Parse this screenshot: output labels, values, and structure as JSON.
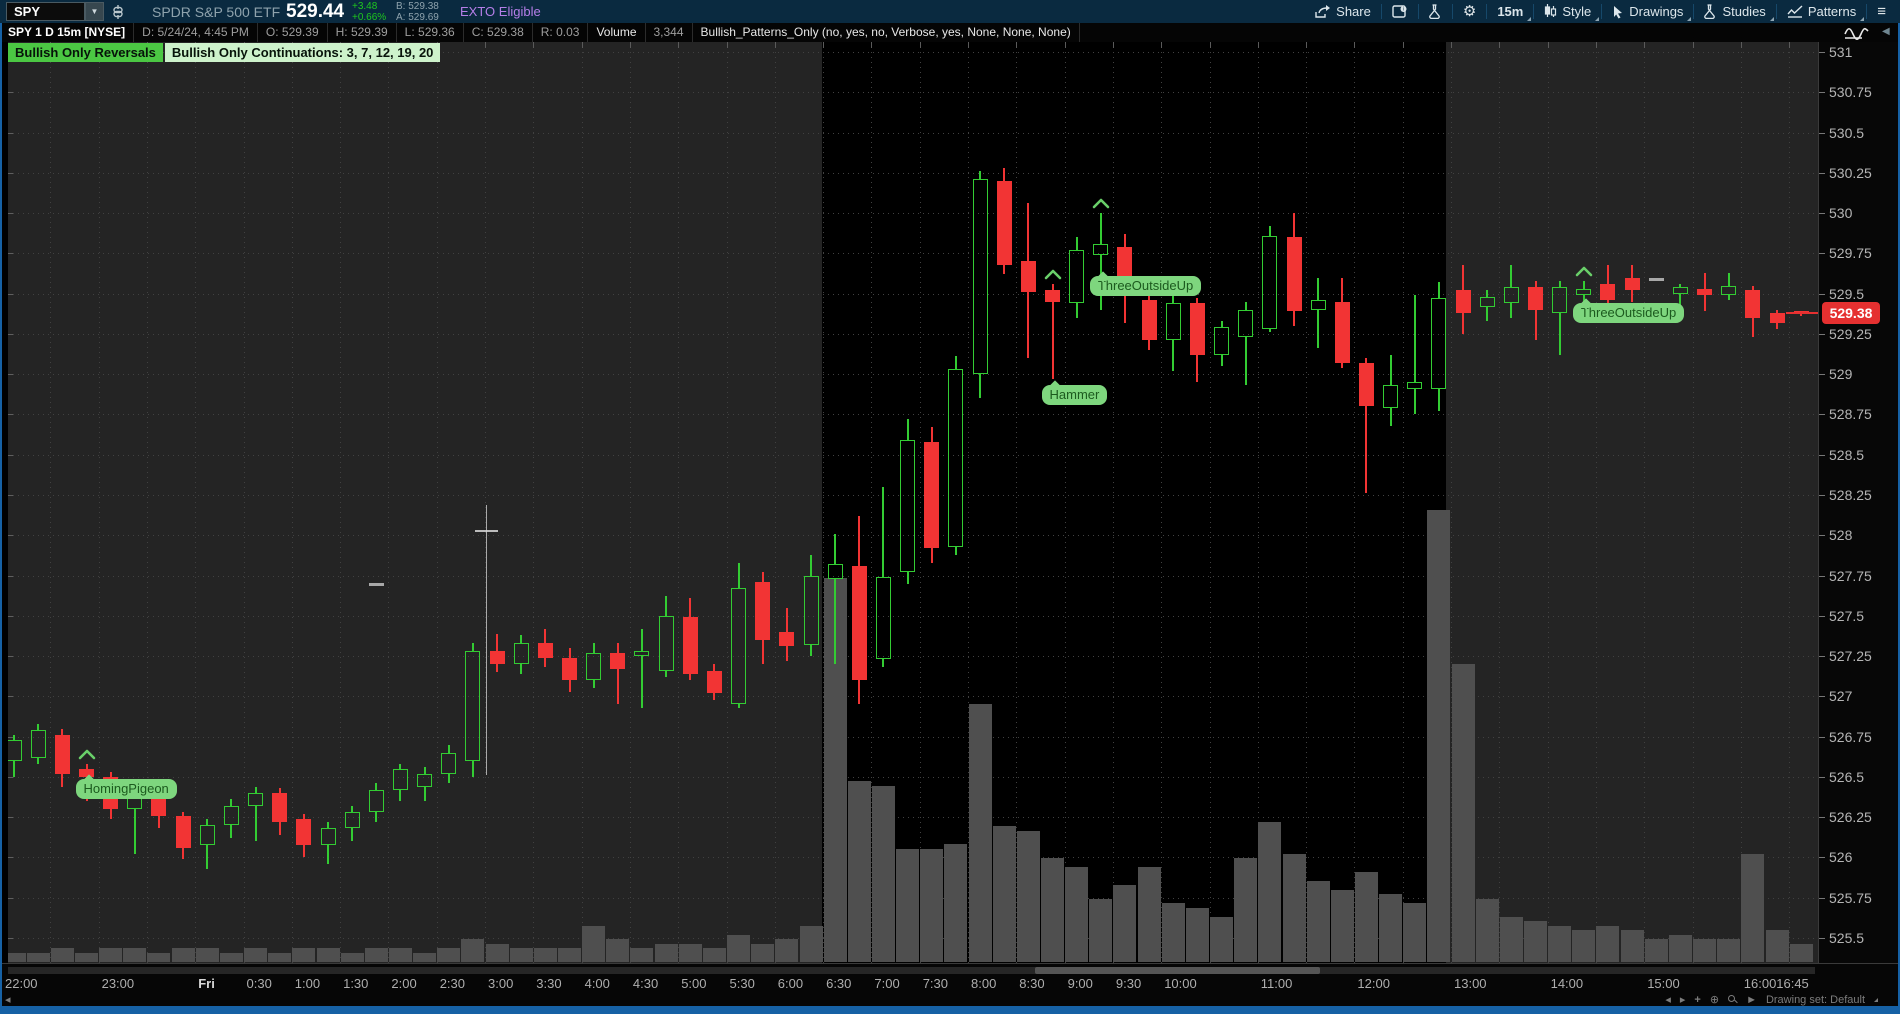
{
  "title_bar": {
    "symbol_input": "SPY",
    "company": "SPDR S&P 500 ETF",
    "last_price": "529.44",
    "change": "+3.48",
    "change_pct": "+0.66%",
    "bid": "B: 529.38",
    "ask": "A: 529.69",
    "exto_badge": "EXTO Eligible",
    "share_label": "Share",
    "interval_label": "15m",
    "style_label": "Style",
    "drawings_label": "Drawings",
    "studies_label": "Studies",
    "patterns_label": "Patterns"
  },
  "info_bar": {
    "segments": [
      "SPY 1 D 15m [NYSE]",
      "D: 5/24/24, 4:45 PM",
      "O: 529.39",
      "H: 529.39",
      "L: 529.36",
      "C: 529.38",
      "R: 0.03",
      "Volume",
      "3,344",
      "Bullish_Patterns_Only (no, yes, no, Verbose, yes, None, None, None)"
    ]
  },
  "overlay_chips": [
    {
      "text": "Bullish Only Reversals",
      "bg": "#4bc743"
    },
    {
      "text": "Bullish Only Continuations: 3, 7, 12, 19, 20",
      "bg": "#cdf2cb"
    }
  ],
  "chart_data": {
    "type": "candlestick",
    "title": "SPY 1 D 15m [NYSE]",
    "interval": "15m",
    "price_axis": {
      "min": 525.5,
      "max": 531,
      "tick": 0.25,
      "labels": [
        "531",
        "530.75",
        "530.5",
        "530.25",
        "530",
        "529.75",
        "529.5",
        "529.25",
        "529",
        "528.75",
        "528.5",
        "528.25",
        "528",
        "527.75",
        "527.5",
        "527.25",
        "527",
        "526.75",
        "526.5",
        "526.25",
        "526",
        "525.75",
        "525.5"
      ],
      "last_price": "529.38"
    },
    "time_axis": {
      "labels": [
        {
          "t": "22:00",
          "s": 0
        },
        {
          "t": "23:00",
          "s": 2
        },
        {
          "t": "Fri",
          "s": 4,
          "b": 1
        },
        {
          "t": "0:30",
          "s": 5
        },
        {
          "t": "1:00",
          "s": 6
        },
        {
          "t": "1:30",
          "s": 7
        },
        {
          "t": "2:00",
          "s": 8
        },
        {
          "t": "2:30",
          "s": 9
        },
        {
          "t": "3:00",
          "s": 10
        },
        {
          "t": "3:30",
          "s": 11
        },
        {
          "t": "4:00",
          "s": 12
        },
        {
          "t": "4:30",
          "s": 13
        },
        {
          "t": "5:00",
          "s": 14
        },
        {
          "t": "5:30",
          "s": 15
        },
        {
          "t": "6:00",
          "s": 16
        },
        {
          "t": "6:30",
          "s": 17
        },
        {
          "t": "7:00",
          "s": 18
        },
        {
          "t": "7:30",
          "s": 19
        },
        {
          "t": "8:00",
          "s": 20
        },
        {
          "t": "8:30",
          "s": 21
        },
        {
          "t": "9:00",
          "s": 22
        },
        {
          "t": "9:30",
          "s": 23
        },
        {
          "t": "10:00",
          "s": 24
        },
        {
          "t": "11:00",
          "s": 26
        },
        {
          "t": "12:00",
          "s": 28
        },
        {
          "t": "13:00",
          "s": 30
        },
        {
          "t": "14:00",
          "s": 32
        },
        {
          "t": "15:00",
          "s": 34
        },
        {
          "t": "16:00",
          "s": 36
        },
        {
          "t": "16:45",
          "s": 37.5,
          "right": 1
        }
      ]
    },
    "session_shading": {
      "start": "6:30",
      "end": "13:00"
    },
    "candles": [
      [
        "22:00",
        526.6,
        526.76,
        526.5,
        526.73,
        2
      ],
      [
        "22:15",
        526.62,
        526.83,
        526.58,
        526.79,
        2
      ],
      [
        "22:30",
        526.76,
        526.8,
        526.44,
        526.52,
        3
      ],
      [
        "22:45",
        526.55,
        526.58,
        526.35,
        526.5,
        2
      ],
      [
        "23:00",
        526.5,
        526.53,
        526.24,
        526.3,
        3
      ],
      [
        "23:15",
        526.3,
        526.42,
        526.02,
        526.38,
        3
      ],
      [
        "23:30",
        526.38,
        526.41,
        526.18,
        526.26,
        2
      ],
      [
        "23:45",
        526.26,
        526.28,
        525.99,
        526.06,
        3
      ],
      [
        "0:00",
        526.08,
        526.24,
        525.93,
        526.2,
        3
      ],
      [
        "0:15",
        526.2,
        526.36,
        526.12,
        526.32,
        2
      ],
      [
        "0:30",
        526.32,
        526.44,
        526.1,
        526.4,
        3
      ],
      [
        "0:45",
        526.4,
        526.43,
        526.14,
        526.22,
        2
      ],
      [
        "1:00",
        526.24,
        526.27,
        526.0,
        526.08,
        3
      ],
      [
        "1:15",
        526.08,
        526.22,
        525.96,
        526.18,
        3
      ],
      [
        "1:30",
        526.18,
        526.32,
        526.1,
        526.28,
        2
      ],
      [
        "1:45",
        526.28,
        526.46,
        526.22,
        526.42,
        3
      ],
      [
        "2:00",
        526.42,
        526.58,
        526.35,
        526.55,
        3
      ],
      [
        "2:15",
        526.44,
        526.56,
        526.35,
        526.52,
        2
      ],
      [
        "2:30",
        526.52,
        526.7,
        526.46,
        526.65,
        3
      ],
      [
        "2:45",
        526.6,
        527.33,
        526.5,
        527.28,
        5
      ],
      [
        "3:00",
        527.28,
        527.39,
        527.15,
        527.2,
        4
      ],
      [
        "3:15",
        527.2,
        527.38,
        527.14,
        527.33,
        3
      ],
      [
        "3:30",
        527.33,
        527.42,
        527.18,
        527.24,
        3
      ],
      [
        "3:45",
        527.24,
        527.3,
        527.03,
        527.1,
        3
      ],
      [
        "4:00",
        527.1,
        527.33,
        527.05,
        527.27,
        8
      ],
      [
        "4:15",
        527.27,
        527.33,
        526.95,
        527.17,
        5
      ],
      [
        "4:30",
        527.25,
        527.42,
        526.93,
        527.28,
        3
      ],
      [
        "4:45",
        527.16,
        527.62,
        527.12,
        527.5,
        4
      ],
      [
        "5:00",
        527.49,
        527.61,
        527.1,
        527.14,
        4
      ],
      [
        "5:15",
        527.16,
        527.2,
        526.98,
        527.02,
        3
      ],
      [
        "5:30",
        526.95,
        527.83,
        526.93,
        527.67,
        6
      ],
      [
        "5:45",
        527.71,
        527.77,
        527.2,
        527.35,
        4
      ],
      [
        "6:00",
        527.4,
        527.55,
        527.22,
        527.31,
        5
      ],
      [
        "6:15",
        527.32,
        527.88,
        527.25,
        527.75,
        8
      ],
      [
        "6:30",
        527.73,
        528.01,
        527.2,
        527.82,
        85
      ],
      [
        "6:45",
        527.81,
        528.12,
        526.95,
        527.1,
        40
      ],
      [
        "7:00",
        527.23,
        528.3,
        527.18,
        527.74,
        39
      ],
      [
        "7:15",
        527.77,
        528.72,
        527.7,
        528.59,
        25
      ],
      [
        "7:30",
        528.58,
        528.67,
        527.83,
        527.92,
        25
      ],
      [
        "7:45",
        527.93,
        529.11,
        527.88,
        529.03,
        26
      ],
      [
        "8:00",
        529.0,
        530.26,
        528.85,
        530.21,
        57
      ],
      [
        "8:15",
        530.2,
        530.28,
        529.62,
        529.68,
        30
      ],
      [
        "8:30",
        529.7,
        530.06,
        529.1,
        529.51,
        29
      ],
      [
        "8:45",
        529.52,
        529.56,
        528.97,
        529.45,
        23
      ],
      [
        "9:00",
        529.44,
        529.85,
        529.35,
        529.77,
        21
      ],
      [
        "9:15",
        529.74,
        530.0,
        529.4,
        529.81,
        14
      ],
      [
        "9:30",
        529.79,
        529.87,
        529.32,
        529.5,
        17
      ],
      [
        "9:45",
        529.46,
        529.5,
        529.15,
        529.21,
        21
      ],
      [
        "10:00",
        529.21,
        529.5,
        529.02,
        529.44,
        13
      ],
      [
        "10:15",
        529.44,
        529.47,
        528.95,
        529.12,
        12
      ],
      [
        "10:30",
        529.12,
        529.33,
        529.05,
        529.29,
        10
      ],
      [
        "10:45",
        529.23,
        529.45,
        528.93,
        529.4,
        23
      ],
      [
        "11:00",
        529.28,
        529.92,
        529.26,
        529.86,
        31
      ],
      [
        "11:15",
        529.85,
        530.0,
        529.3,
        529.39,
        24
      ],
      [
        "11:30",
        529.4,
        529.6,
        529.16,
        529.46,
        18
      ],
      [
        "11:45",
        529.45,
        529.6,
        529.04,
        529.07,
        16
      ],
      [
        "12:00",
        529.07,
        529.1,
        528.26,
        528.8,
        20
      ],
      [
        "12:15",
        528.79,
        529.12,
        528.68,
        528.93,
        15
      ],
      [
        "12:30",
        528.91,
        529.49,
        528.75,
        528.95,
        13
      ],
      [
        "12:45",
        528.91,
        529.57,
        528.77,
        529.47,
        100
      ],
      [
        "13:00",
        529.52,
        529.68,
        529.25,
        529.38,
        66
      ],
      [
        "13:15",
        529.42,
        529.52,
        529.33,
        529.48,
        14
      ],
      [
        "13:30",
        529.44,
        529.68,
        529.35,
        529.54,
        10
      ],
      [
        "13:45",
        529.54,
        529.58,
        529.21,
        529.4,
        9
      ],
      [
        "14:00",
        529.38,
        529.58,
        529.12,
        529.54,
        8
      ],
      [
        "14:15",
        529.49,
        529.58,
        529.45,
        529.53,
        7
      ],
      [
        "14:30",
        529.56,
        529.68,
        529.39,
        529.46,
        8
      ],
      [
        "14:45",
        529.6,
        529.68,
        529.45,
        529.52,
        7
      ],
      [
        "15:00",
        null,
        null,
        null,
        null,
        5
      ],
      [
        "15:15",
        529.5,
        529.56,
        529.42,
        529.54,
        6
      ],
      [
        "15:30",
        529.53,
        529.63,
        529.39,
        529.49,
        5
      ],
      [
        "15:45",
        529.49,
        529.63,
        529.46,
        529.55,
        5
      ],
      [
        "16:00",
        529.52,
        529.55,
        529.23,
        529.35,
        24
      ],
      [
        "16:15",
        529.38,
        529.4,
        529.28,
        529.32,
        7
      ],
      [
        "16:30",
        529.39,
        529.39,
        529.36,
        529.38,
        4
      ]
    ],
    "patterns": [
      {
        "name": "HomingPigeon",
        "time": "22:45",
        "label_price": 526.49
      },
      {
        "name": "Hammer",
        "time": "8:45",
        "label_price": 528.93
      },
      {
        "name": "ThreeOutsideUp",
        "time": "9:15",
        "label_price": 529.61
      },
      {
        "name": "ThreeOutsideUp",
        "time": "14:15",
        "label_price": 529.44
      }
    ],
    "gray_dashes": [
      {
        "time": "1:45",
        "price": 527.7
      },
      {
        "time": "15:00",
        "price": 529.59
      }
    ],
    "crosshair": {
      "time": "3:00",
      "price": 528.03
    },
    "colors": {
      "up": "#33cc33",
      "down": "#f23434",
      "volume": "#4f4f4f",
      "chart_bg": "#242424",
      "session_bg": "#000000",
      "grid": "#414141",
      "pill_bg": "#7ed67e",
      "pill_fg": "#1c5a1e",
      "caret": "#69cf69",
      "last_price_bg": "#e53030",
      "axis_text": "#b5b5b5"
    },
    "legend_position": "none",
    "grid": "dotted"
  },
  "footer": {
    "drawing_set": "Drawing set: Default",
    "icons": [
      "scroll-left-icon",
      "scroll-right-icon",
      "pan-icon",
      "target-icon",
      "zoom-icon",
      "cursor-icon"
    ]
  }
}
